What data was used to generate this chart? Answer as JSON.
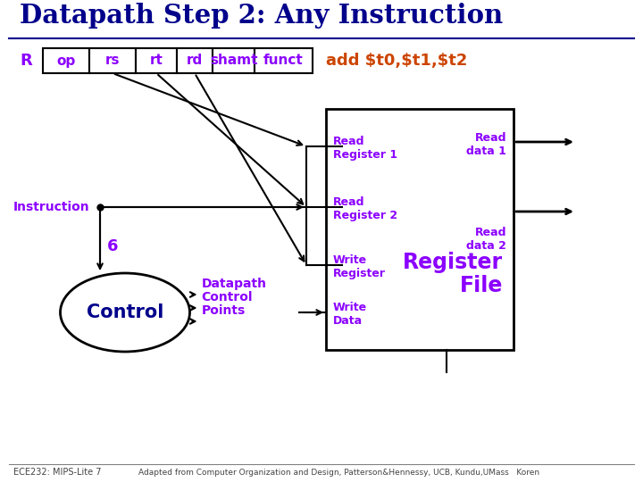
{
  "title": "Datapath Step 2: Any Instruction",
  "title_color": "#00008B",
  "bg_color": "#FFFFFF",
  "purple": "#8B00FF",
  "orange": "#CC4400",
  "black": "#000000",
  "footer_left": "ECE232: MIPS-Lite 7",
  "footer_right": "Adapted from Computer Organization and Design, Patterson&Hennessy, UCB, Kundu,UMass   Koren"
}
